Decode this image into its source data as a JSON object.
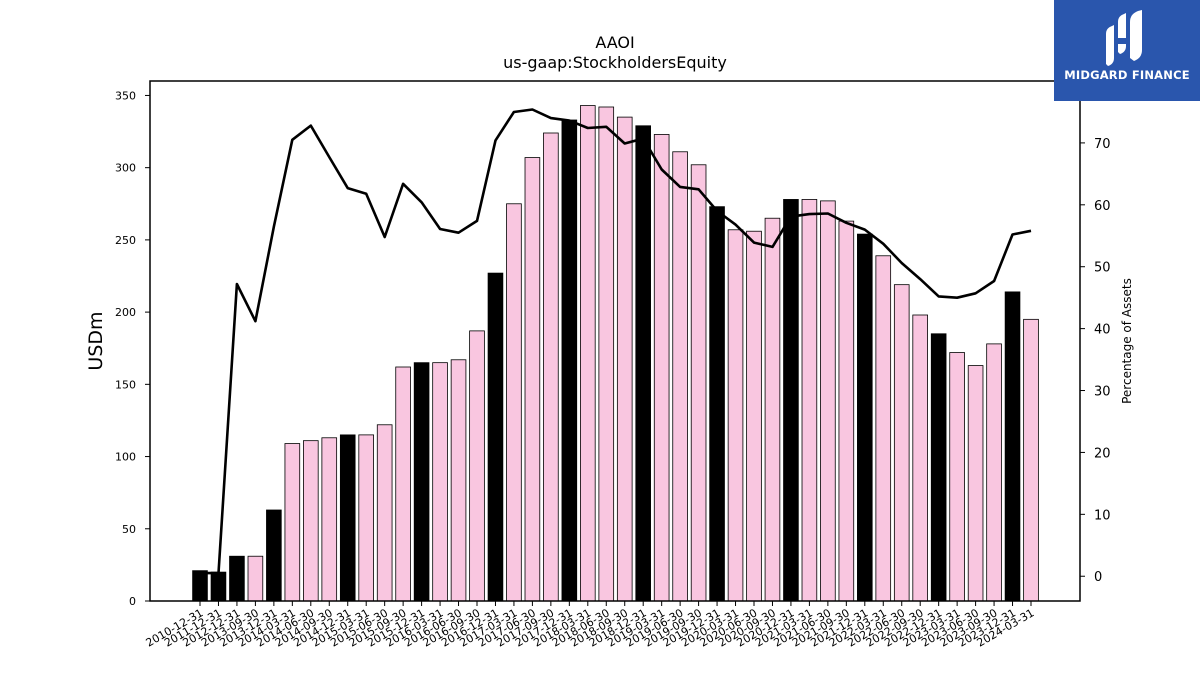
{
  "chart_data": {
    "type": "bar",
    "title": "AAOI",
    "subtitle": "us-gaap:StockholdersEquity",
    "ylabel": "USDm",
    "y2label": "Percentage of Assets",
    "ylim": [
      0,
      360
    ],
    "y2lim": [
      -4,
      80
    ],
    "yticks": [
      0,
      50,
      100,
      150,
      200,
      250,
      300,
      350
    ],
    "y2ticks": [
      0,
      10,
      20,
      30,
      40,
      50,
      60,
      70
    ],
    "grid": false,
    "categories": [
      "2010-12-31",
      "2011-12-31",
      "2012-12-31",
      "2013-09-30",
      "2013-12-31",
      "2014-03-31",
      "2014-06-30",
      "2014-09-30",
      "2014-12-31",
      "2015-03-31",
      "2015-06-30",
      "2015-09-30",
      "2015-12-31",
      "2016-03-31",
      "2016-06-30",
      "2016-09-30",
      "2016-12-31",
      "2017-03-31",
      "2017-06-30",
      "2017-09-30",
      "2017-12-31",
      "2018-03-31",
      "2018-06-30",
      "2018-09-30",
      "2018-12-31",
      "2019-03-31",
      "2019-06-30",
      "2019-09-30",
      "2019-12-31",
      "2020-03-31",
      "2020-06-30",
      "2020-09-30",
      "2020-12-31",
      "2021-03-31",
      "2021-06-30",
      "2021-09-30",
      "2021-12-31",
      "2022-03-31",
      "2022-06-30",
      "2022-09-30",
      "2022-12-31",
      "2023-03-31",
      "2023-06-30",
      "2023-09-30",
      "2023-12-31",
      "2024-03-31"
    ],
    "series": [
      {
        "type": "bar",
        "values": [
          21,
          20,
          31,
          31,
          63,
          109,
          111,
          113,
          115,
          115,
          122,
          162,
          165,
          165,
          167,
          187,
          227,
          275,
          307,
          324,
          333,
          343,
          342,
          335,
          329,
          323,
          311,
          302,
          273,
          257,
          256,
          265,
          278,
          278,
          277,
          263,
          254,
          239,
          219,
          198,
          185,
          172,
          163,
          178,
          214,
          195
        ],
        "colors": [
          "#000000",
          "#000000",
          "#000000",
          "#f9c6e0",
          "#000000",
          "#f9c6e0",
          "#f9c6e0",
          "#f9c6e0",
          "#000000",
          "#f9c6e0",
          "#f9c6e0",
          "#f9c6e0",
          "#000000",
          "#f9c6e0",
          "#f9c6e0",
          "#f9c6e0",
          "#000000",
          "#f9c6e0",
          "#f9c6e0",
          "#f9c6e0",
          "#000000",
          "#f9c6e0",
          "#f9c6e0",
          "#f9c6e0",
          "#000000",
          "#f9c6e0",
          "#f9c6e0",
          "#f9c6e0",
          "#000000",
          "#f9c6e0",
          "#f9c6e0",
          "#f9c6e0",
          "#000000",
          "#f9c6e0",
          "#f9c6e0",
          "#f9c6e0",
          "#000000",
          "#f9c6e0",
          "#f9c6e0",
          "#f9c6e0",
          "#000000",
          "#f9c6e0",
          "#f9c6e0",
          "#f9c6e0",
          "#000000",
          "#f9c6e0"
        ]
      },
      {
        "type": "line",
        "axis": "right",
        "color": "#000000",
        "values": [
          0.5,
          0.5,
          47.2,
          41.2,
          56.5,
          70.5,
          72.8,
          67.7,
          62.7,
          61.8,
          54.8,
          63.4,
          60.4,
          56.1,
          55.5,
          57.4,
          70.4,
          75.0,
          75.4,
          74.0,
          73.6,
          72.4,
          72.6,
          69.9,
          70.7,
          65.7,
          62.9,
          62.5,
          59.0,
          56.8,
          53.9,
          53.2,
          58.1,
          58.5,
          58.6,
          57.1,
          56.0,
          53.7,
          50.6,
          48.0,
          45.2,
          45.0,
          45.7,
          47.7,
          55.2,
          55.8
        ]
      }
    ]
  },
  "logo": {
    "text": "MIDGARD FINANCE",
    "icon": "midgard-logo-icon",
    "background": "#2a56ad"
  }
}
